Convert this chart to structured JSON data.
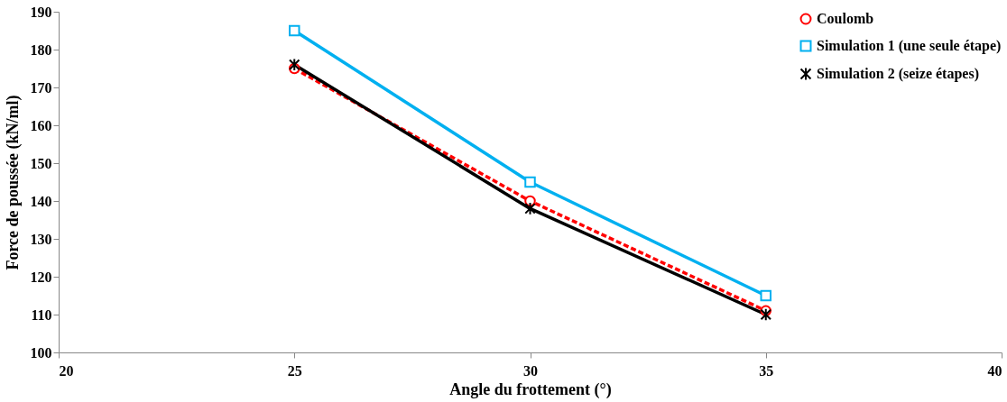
{
  "chart_data": {
    "type": "line",
    "xlabel": "Angle du frottement (°)",
    "ylabel": "Force de poussée (kN/ml)",
    "x": [
      25,
      30,
      35
    ],
    "series": [
      {
        "name": "Coulomb",
        "color": "#ff0000",
        "values": [
          175,
          140,
          111
        ],
        "marker": "circle",
        "line_style": "dashed"
      },
      {
        "name": "Simulation 1 (une seule étape)",
        "color": "#00b0f0",
        "values": [
          185,
          145,
          115
        ],
        "marker": "square",
        "line_style": "solid"
      },
      {
        "name": "Simulation 2 (seize étapes)",
        "color": "#000000",
        "values": [
          176,
          138,
          110
        ],
        "marker": "cross",
        "line_style": "solid"
      }
    ],
    "xlim": [
      20,
      40
    ],
    "xticks": [
      20,
      25,
      30,
      35,
      40
    ],
    "ylim": [
      100,
      190
    ],
    "yticks": [
      100,
      110,
      120,
      130,
      140,
      150,
      160,
      170,
      180,
      190
    ],
    "grid": false,
    "legend": "top right"
  }
}
